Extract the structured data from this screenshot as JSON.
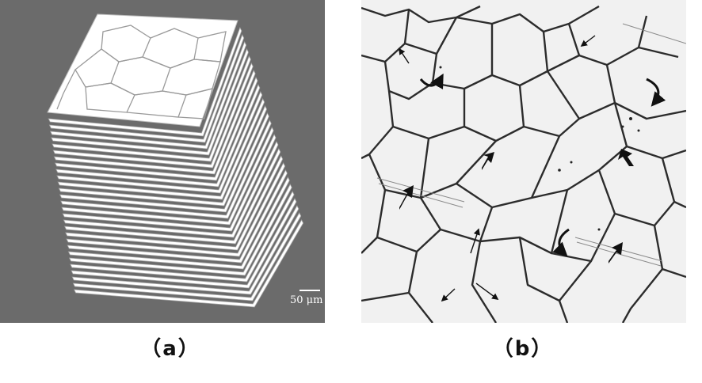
{
  "panels": {
    "a": {
      "caption": "（a）",
      "scale_bar": "50 μm"
    },
    "b": {
      "caption": "（b）"
    }
  }
}
